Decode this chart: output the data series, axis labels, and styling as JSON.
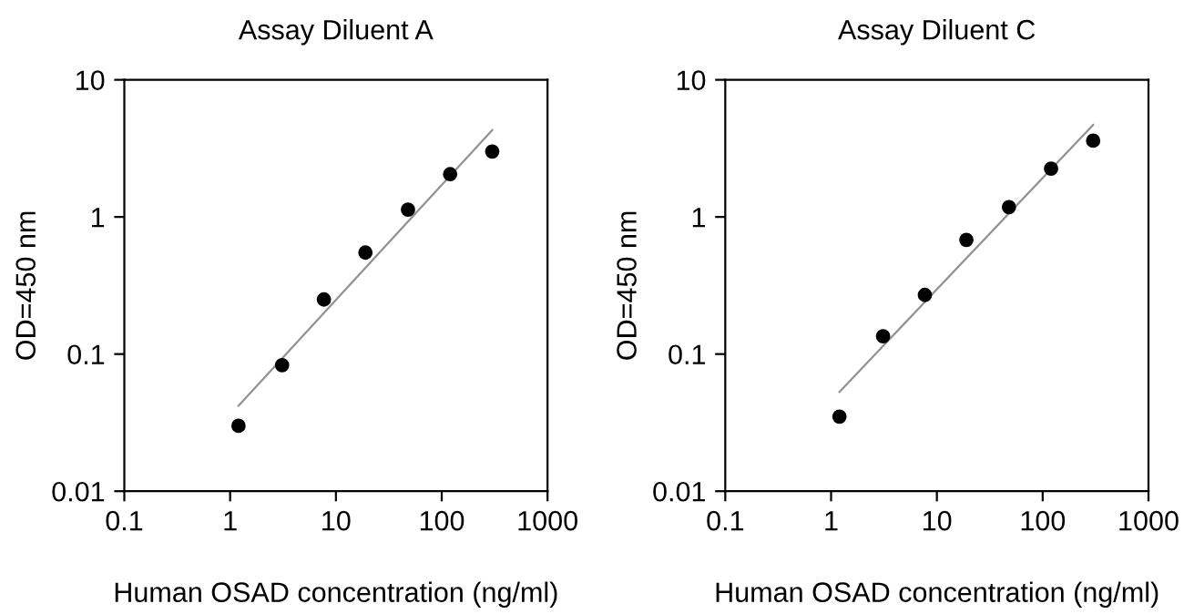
{
  "chart_data": [
    {
      "type": "scatter",
      "title": "Assay Diluent A",
      "xlabel": "Human OSAD concentration (ng/ml)",
      "ylabel": "OD=450 nm",
      "log": "xy",
      "xlim": [
        0.1,
        1000
      ],
      "ylim": [
        0.01,
        10
      ],
      "xticks": [
        0.1,
        1,
        10,
        100,
        1000
      ],
      "yticks": [
        0.01,
        0.1,
        1,
        10
      ],
      "grid": false,
      "legend": false,
      "marker": "circle",
      "series": [
        {
          "color": "#000000",
          "x": [
            1.2,
            3.1,
            7.7,
            19,
            48,
            120,
            300
          ],
          "values": [
            0.03,
            0.083,
            0.25,
            0.55,
            1.13,
            2.05,
            3.0
          ]
        },
        {
          "type": "line",
          "color": "#909090",
          "marker": "none",
          "x": [
            1.2,
            300
          ],
          "values": [
            0.042,
            4.3
          ]
        }
      ]
    },
    {
      "type": "scatter",
      "title": "Assay Diluent C",
      "xlabel": "Human OSAD concentration (ng/ml)",
      "ylabel": "OD=450 nm",
      "log": "xy",
      "xlim": [
        0.1,
        1000
      ],
      "ylim": [
        0.01,
        10
      ],
      "xticks": [
        0.1,
        1,
        10,
        100,
        1000
      ],
      "yticks": [
        0.01,
        0.1,
        1,
        10
      ],
      "grid": false,
      "legend": false,
      "marker": "circle",
      "series": [
        {
          "color": "#000000",
          "x": [
            1.2,
            3.1,
            7.7,
            19,
            48,
            120,
            300
          ],
          "values": [
            0.035,
            0.135,
            0.27,
            0.68,
            1.18,
            2.25,
            3.6
          ]
        },
        {
          "type": "line",
          "color": "#909090",
          "marker": "none",
          "x": [
            1.2,
            300
          ],
          "values": [
            0.053,
            4.7
          ]
        }
      ]
    }
  ]
}
